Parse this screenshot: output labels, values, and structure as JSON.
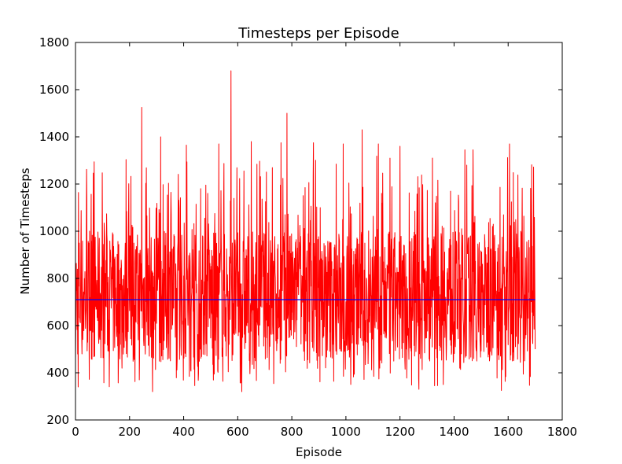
{
  "chart_data": {
    "type": "line",
    "title": "Timesteps per Episode",
    "xlabel": "Episode",
    "ylabel": "Number of Timesteps",
    "xlim": [
      0,
      1800
    ],
    "ylim": [
      200,
      1800
    ],
    "xticks": [
      0,
      200,
      400,
      600,
      800,
      1000,
      1200,
      1400,
      1600,
      1800
    ],
    "yticks": [
      200,
      400,
      600,
      800,
      1000,
      1200,
      1400,
      1600,
      1800
    ],
    "xtick_labels": [
      "0",
      "200",
      "400",
      "600",
      "800",
      "1000",
      "1200",
      "1400",
      "1600",
      "1800"
    ],
    "ytick_labels": [
      "200",
      "400",
      "600",
      "800",
      "1000",
      "1200",
      "1400",
      "1600",
      "1800"
    ],
    "grid": false,
    "legend": "none",
    "series": [
      {
        "color": "#ff0000",
        "x_range": [
          0,
          1700
        ],
        "value_range": [
          320,
          1680
        ],
        "typical_range": [
          450,
          1000
        ],
        "notable_points": [
          {
            "x": 10,
            "y": 340
          },
          {
            "x": 245,
            "y": 1525
          },
          {
            "x": 285,
            "y": 320
          },
          {
            "x": 315,
            "y": 1400
          },
          {
            "x": 410,
            "y": 1365
          },
          {
            "x": 530,
            "y": 1370
          },
          {
            "x": 575,
            "y": 1680
          },
          {
            "x": 615,
            "y": 320
          },
          {
            "x": 650,
            "y": 1380
          },
          {
            "x": 760,
            "y": 1375
          },
          {
            "x": 782,
            "y": 1500
          },
          {
            "x": 880,
            "y": 1375
          },
          {
            "x": 990,
            "y": 1370
          },
          {
            "x": 1060,
            "y": 1430
          },
          {
            "x": 1120,
            "y": 1370
          },
          {
            "x": 1200,
            "y": 1360
          },
          {
            "x": 1270,
            "y": 330
          },
          {
            "x": 1320,
            "y": 1310
          },
          {
            "x": 1360,
            "y": 350
          },
          {
            "x": 1440,
            "y": 1345
          },
          {
            "x": 1470,
            "y": 1345
          },
          {
            "x": 1575,
            "y": 325
          },
          {
            "x": 1605,
            "y": 1370
          },
          {
            "x": 1700,
            "y": 500
          }
        ]
      },
      {
        "color": "#0000ff",
        "x": [
          0,
          1700
        ],
        "y": [
          710,
          710
        ]
      }
    ],
    "colors": {
      "noisy_series": "#ff0000",
      "mean_series": "#0000ff",
      "axes": "#000000",
      "background": "#ffffff"
    }
  }
}
